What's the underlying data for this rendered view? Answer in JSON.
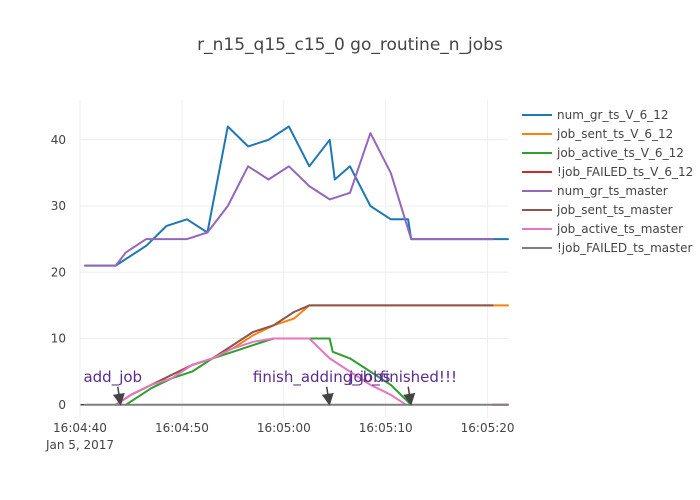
{
  "chart_data": {
    "type": "line",
    "title": "r_n15_q15_c15_0 go_routine_n_jobs",
    "xlabel": "",
    "ylabel": "",
    "x_range": [
      "2017-01-05 16:04:40",
      "2017-01-05 16:05:22"
    ],
    "ylim": [
      -2,
      46
    ],
    "x_tick_labels": [
      "16:04:40",
      "16:04:50",
      "16:05:00",
      "16:05:10",
      "16:05:20"
    ],
    "x_tick_values": [
      "2017-01-05 16:04:40",
      "2017-01-05 16:04:50",
      "2017-01-05 16:05:00",
      "2017-01-05 16:05:10",
      "2017-01-05 16:05:20"
    ],
    "x_date_label": "Jan 5, 2017",
    "y_ticks": [
      0,
      10,
      20,
      30,
      40
    ],
    "y_tick_labels": [
      "0",
      "10",
      "20",
      "30",
      "40"
    ],
    "grid": true,
    "legend_position": "right",
    "series": [
      {
        "name": "num_gr_ts_V_6_12",
        "color": "#1f77b4",
        "points": [
          [
            "2017-01-05 16:04:40.5",
            21
          ],
          [
            "2017-01-05 16:04:43.5",
            21
          ],
          [
            "2017-01-05 16:04:46.5",
            24
          ],
          [
            "2017-01-05 16:04:48.5",
            27
          ],
          [
            "2017-01-05 16:04:50.5",
            28
          ],
          [
            "2017-01-05 16:04:52.5",
            26
          ],
          [
            "2017-01-05 16:04:54.5",
            42
          ],
          [
            "2017-01-05 16:04:56.5",
            39
          ],
          [
            "2017-01-05 16:04:58.5",
            40
          ],
          [
            "2017-01-05 16:05:00.5",
            42
          ],
          [
            "2017-01-05 16:05:02.5",
            36
          ],
          [
            "2017-01-05 16:05:04.5",
            40
          ],
          [
            "2017-01-05 16:05:05",
            34
          ],
          [
            "2017-01-05 16:05:06.5",
            36
          ],
          [
            "2017-01-05 16:05:08.5",
            30
          ],
          [
            "2017-01-05 16:05:10.5",
            28
          ],
          [
            "2017-01-05 16:05:12.2",
            28
          ],
          [
            "2017-01-05 16:05:12.5",
            25
          ],
          [
            "2017-01-05 16:05:22",
            25
          ]
        ]
      },
      {
        "name": "job_sent_ts_V_6_12",
        "color": "#ff7f0e",
        "points": [
          [
            "2017-01-05 16:04:43.5",
            0
          ],
          [
            "2017-01-05 16:04:45",
            1.5
          ],
          [
            "2017-01-05 16:04:47",
            3
          ],
          [
            "2017-01-05 16:04:49",
            4.5
          ],
          [
            "2017-01-05 16:04:51",
            6
          ],
          [
            "2017-01-05 16:04:53",
            7
          ],
          [
            "2017-01-05 16:04:55",
            8.5
          ],
          [
            "2017-01-05 16:04:57",
            10.5
          ],
          [
            "2017-01-05 16:04:59",
            12
          ],
          [
            "2017-01-05 16:05:01",
            13
          ],
          [
            "2017-01-05 16:05:02.5",
            15
          ],
          [
            "2017-01-05 16:05:22",
            15
          ]
        ]
      },
      {
        "name": "job_active_ts_V_6_12",
        "color": "#2ca02c",
        "points": [
          [
            "2017-01-05 16:04:44.5",
            0
          ],
          [
            "2017-01-05 16:04:47",
            2.5
          ],
          [
            "2017-01-05 16:04:49",
            4
          ],
          [
            "2017-01-05 16:04:51",
            5
          ],
          [
            "2017-01-05 16:04:53",
            7
          ],
          [
            "2017-01-05 16:04:55",
            8
          ],
          [
            "2017-01-05 16:04:57",
            9
          ],
          [
            "2017-01-05 16:04:59",
            10
          ],
          [
            "2017-01-05 16:05:01",
            10
          ],
          [
            "2017-01-05 16:05:03",
            10
          ],
          [
            "2017-01-05 16:05:04.5",
            10
          ],
          [
            "2017-01-05 16:05:04.8",
            8
          ],
          [
            "2017-01-05 16:05:06.5",
            7
          ],
          [
            "2017-01-05 16:05:08.5",
            5
          ],
          [
            "2017-01-05 16:05:10.5",
            3
          ],
          [
            "2017-01-05 16:05:12.5",
            0
          ]
        ]
      },
      {
        "name": "!job_FAILED_ts_V_6_12",
        "color": "#d62728",
        "points": [
          [
            "2017-01-05 16:05:20.5",
            0
          ],
          [
            "2017-01-05 16:05:22",
            0
          ]
        ]
      },
      {
        "name": "num_gr_ts_master",
        "color": "#9467bd",
        "points": [
          [
            "2017-01-05 16:04:40.5",
            21
          ],
          [
            "2017-01-05 16:04:43.5",
            21
          ],
          [
            "2017-01-05 16:04:44.5",
            23
          ],
          [
            "2017-01-05 16:04:46.5",
            25
          ],
          [
            "2017-01-05 16:04:48.5",
            25
          ],
          [
            "2017-01-05 16:04:50.5",
            25
          ],
          [
            "2017-01-05 16:04:52.5",
            26
          ],
          [
            "2017-01-05 16:04:54.5",
            30
          ],
          [
            "2017-01-05 16:04:56.5",
            36
          ],
          [
            "2017-01-05 16:04:58.5",
            34
          ],
          [
            "2017-01-05 16:05:00.5",
            36
          ],
          [
            "2017-01-05 16:05:02.5",
            33
          ],
          [
            "2017-01-05 16:05:04.5",
            31
          ],
          [
            "2017-01-05 16:05:06.5",
            32
          ],
          [
            "2017-01-05 16:05:08.5",
            41
          ],
          [
            "2017-01-05 16:05:10.5",
            35
          ],
          [
            "2017-01-05 16:05:12.5",
            25
          ],
          [
            "2017-01-05 16:05:20.5",
            25
          ]
        ]
      },
      {
        "name": "job_sent_ts_master",
        "color": "#8c564b",
        "points": [
          [
            "2017-01-05 16:04:43.5",
            0
          ],
          [
            "2017-01-05 16:04:45",
            1.5
          ],
          [
            "2017-01-05 16:04:47",
            3
          ],
          [
            "2017-01-05 16:04:49",
            4.5
          ],
          [
            "2017-01-05 16:04:51",
            6
          ],
          [
            "2017-01-05 16:04:53",
            7
          ],
          [
            "2017-01-05 16:04:55",
            9
          ],
          [
            "2017-01-05 16:04:57",
            11
          ],
          [
            "2017-01-05 16:04:59",
            12
          ],
          [
            "2017-01-05 16:05:01",
            14
          ],
          [
            "2017-01-05 16:05:02.5",
            15
          ],
          [
            "2017-01-05 16:05:20.5",
            15
          ]
        ]
      },
      {
        "name": "job_active_ts_master",
        "color": "#e377c2",
        "points": [
          [
            "2017-01-05 16:04:43.5",
            0
          ],
          [
            "2017-01-05 16:04:45",
            1.5
          ],
          [
            "2017-01-05 16:04:47",
            3
          ],
          [
            "2017-01-05 16:04:49",
            4
          ],
          [
            "2017-01-05 16:04:51",
            6
          ],
          [
            "2017-01-05 16:04:53",
            7
          ],
          [
            "2017-01-05 16:04:55",
            8.5
          ],
          [
            "2017-01-05 16:04:57",
            9.5
          ],
          [
            "2017-01-05 16:04:59",
            10
          ],
          [
            "2017-01-05 16:05:01",
            10
          ],
          [
            "2017-01-05 16:05:02.5",
            10
          ],
          [
            "2017-01-05 16:05:04.5",
            7
          ],
          [
            "2017-01-05 16:05:06.5",
            5
          ],
          [
            "2017-01-05 16:05:08.5",
            3
          ],
          [
            "2017-01-05 16:05:10.5",
            1.5
          ],
          [
            "2017-01-05 16:05:12",
            0
          ]
        ]
      },
      {
        "name": "!job_FAILED_ts_master",
        "color": "#7f7f7f",
        "points": [
          [
            "2017-01-05 16:04:40.5",
            0
          ],
          [
            "2017-01-05 16:05:22",
            0
          ]
        ]
      }
    ],
    "annotations": [
      {
        "text": "add_job",
        "x": "2017-01-05 16:04:44",
        "y": 0,
        "color": "#5b2c8f"
      },
      {
        "text": "finish_adding_jobs",
        "x": "2017-01-05 16:05:04.5",
        "y": 0,
        "color": "#5b2c8f"
      },
      {
        "text": "job_finished!!!",
        "x": "2017-01-05 16:05:12.5",
        "y": 0,
        "color": "#5b2c8f"
      }
    ]
  }
}
